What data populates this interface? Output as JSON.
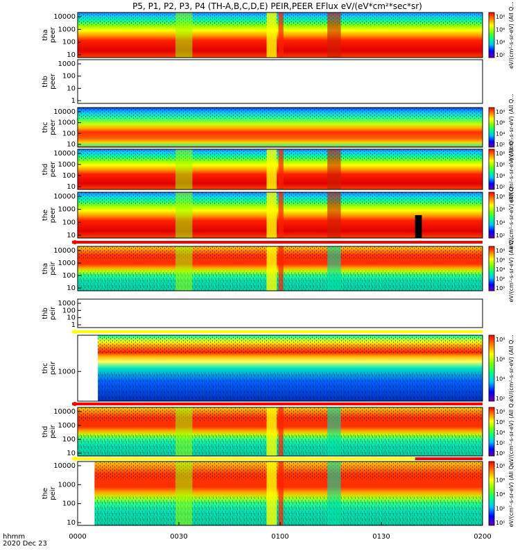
{
  "title": "P5, P1, P2, P3, P4 (TH-A,B,C,D,E) PEIR,PEER EFlux eV/(eV*cm²*sec*sr)",
  "chart_data": {
    "type": "heatmap",
    "date_label": "2020 Dec 23",
    "x_axis_label": "hhmm",
    "x_tick_labels": [
      "0000",
      "0030",
      "0100",
      "0130",
      "0200"
    ],
    "x_range": [
      "00:00",
      "02:00"
    ],
    "colorbar": {
      "scale": "log",
      "colors": [
        "#6a00a8",
        "#0000ff",
        "#00bfff",
        "#00ff7f",
        "#7fff00",
        "#ffff00",
        "#ff8000",
        "#ff0000"
      ]
    },
    "panels": [
      {
        "id": "tha-peer",
        "ylabel": [
          "tha",
          "peer"
        ],
        "ytick_labels": [
          "10000",
          "1000",
          "100",
          "10"
        ],
        "has_data": true,
        "cbar_ticks": [
          "10⁸",
          "10⁶",
          "10⁴",
          "10²"
        ],
        "cbar_label": "eV/(cm²-s-sr-eV) (All Q..."
      },
      {
        "id": "thb-peer",
        "ylabel": [
          "thb",
          "peer"
        ],
        "ytick_labels": [
          "1000",
          "100",
          "10",
          "1"
        ],
        "has_data": false,
        "cbar_ticks": [],
        "cbar_label": ""
      },
      {
        "id": "thc-peer",
        "ylabel": [
          "thc",
          "peer"
        ],
        "ytick_labels": [
          "10000",
          "1000",
          "100",
          "10"
        ],
        "has_data": true,
        "cbar_ticks": [
          "10⁸",
          "10⁶",
          "10⁴",
          "10²"
        ],
        "cbar_label": "eV/(cm²-s-sr-eV) (All Q..."
      },
      {
        "id": "thd-peer",
        "ylabel": [
          "thd",
          "peer"
        ],
        "ytick_labels": [
          "10000",
          "1000",
          "100",
          "10"
        ],
        "has_data": true,
        "cbar_ticks": [
          "10⁸",
          "10⁶",
          "10⁴",
          "10²"
        ],
        "cbar_label": "eV/(cm²-s-sr-eV) (All Q..."
      },
      {
        "id": "the-peer",
        "ylabel": [
          "the",
          "peer"
        ],
        "ytick_labels": [
          "10000",
          "1000",
          "100",
          "10"
        ],
        "has_data": true,
        "cbar_ticks": [
          "10⁸",
          "10⁶",
          "10⁴",
          "10²"
        ],
        "cbar_label": "eV/(cm²-s-sr-eV) (All Q..."
      },
      {
        "id": "tha-peir",
        "ylabel": [
          "tha",
          "peir"
        ],
        "ytick_labels": [
          "10000",
          "1000",
          "100",
          "10"
        ],
        "has_data": true,
        "cbar_ticks": [
          "10⁸",
          "10⁶",
          "10⁴",
          "10²",
          "10⁰"
        ],
        "cbar_label": "eV/(cm²-s-sr-eV) (All Q..."
      },
      {
        "id": "thb-peir",
        "ylabel": [
          "thb",
          "peir"
        ],
        "ytick_labels": [
          "1000",
          "100",
          "10",
          "1"
        ],
        "has_data": false,
        "cbar_ticks": [],
        "cbar_label": ""
      },
      {
        "id": "thc-peir",
        "ylabel": [
          "thc",
          "peir"
        ],
        "ytick_labels": [
          "1000"
        ],
        "has_data": true,
        "cbar_ticks": [
          "10⁸",
          "10⁶",
          "10⁴",
          "10²"
        ],
        "cbar_label": "eV/(cm²-s-sr-eV) (All Q..."
      },
      {
        "id": "thd-peir",
        "ylabel": [
          "thd",
          "peir"
        ],
        "ytick_labels": [
          "10000",
          "1000",
          "100",
          "10"
        ],
        "has_data": true,
        "cbar_ticks": [
          "10⁸",
          "10⁶",
          "10⁴",
          "10²",
          "10⁰"
        ],
        "cbar_label": "eV/(cm²-s-sr-eV) (All Q..."
      },
      {
        "id": "the-peir",
        "ylabel": [
          "the",
          "peir"
        ],
        "ytick_labels": [
          "10000",
          "1000",
          "100",
          "10"
        ],
        "has_data": true,
        "cbar_ticks": [
          "10⁸",
          "10⁶",
          "10⁴",
          "10²",
          "10⁰"
        ],
        "cbar_label": "eV/(cm²-s-sr-eV) (All Q..."
      }
    ]
  }
}
